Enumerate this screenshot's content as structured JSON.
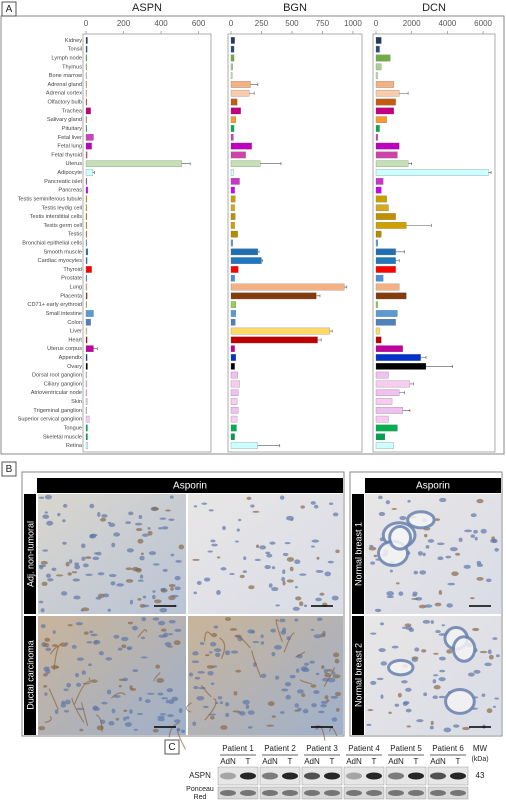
{
  "panel_labels": [
    "A",
    "B",
    "C"
  ],
  "chart_data": [
    {
      "type": "hbar",
      "title": "ASPN",
      "categories": [
        "Kidney",
        "Tonsil",
        "Lymph node",
        "Thymus",
        "Bone marrow",
        "Adrenal gland",
        "Adrenal cortex",
        "Olfactory bulb",
        "Trachea",
        "Salivary gland",
        "Pituitary",
        "Fetal liver",
        "Fetal lung",
        "Fetal thyroid",
        "Uterus",
        "Adipocyte",
        "Pancreatic islet",
        "Pancreas",
        "Testis seminiferous tubule",
        "Testis leydig cell",
        "Testis interstitial cells",
        "Testis germ cell",
        "Testis",
        "Bronchial epithelial cells",
        "Smooth muscle",
        "Cardiac myocytes",
        "Thyroid",
        "Prostate",
        "Lung",
        "Placenta",
        "CD71+ early erythroid",
        "Small intestine",
        "Colon",
        "Liver",
        "Heart",
        "Uterus corpus",
        "Appendix",
        "Ovary",
        "Dorsal root ganglion",
        "Ciliary ganglion",
        "Atrioventricular node",
        "Skin",
        "Trigeminal ganglion",
        "Superior cervical ganglion",
        "Tongue",
        "Skeletal muscle",
        "Retina"
      ],
      "colors": [
        "#203864",
        "#2e4a7a",
        "#70ad47",
        "#a9d18e",
        "#c5e0b4",
        "#f4b183",
        "#f8cbad",
        "#c55a11",
        "#c00080",
        "#ff9933",
        "#00b050",
        "#d040c0",
        "#c000c0",
        "#cc44aa",
        "#c5e0b4",
        "#ccffff",
        "#cc33cc",
        "#cc00ff",
        "#c8a000",
        "#d4aa20",
        "#c09000",
        "#d0a000",
        "#b88a00",
        "#5b9bd5",
        "#1f6fb5",
        "#1f77c0",
        "#ff0000",
        "#4a90d9",
        "#f4b183",
        "#843c0c",
        "#92d050",
        "#5b9bd5",
        "#4f81bd",
        "#ffd966",
        "#c00000",
        "#c000a0",
        "#0033cc",
        "#000000",
        "#f0c0f0",
        "#f8cbf0",
        "#f0c0f0",
        "#f8cbf0",
        "#f0c0f0",
        "#f8cbf0",
        "#00b050",
        "#00a050",
        "#ccffff"
      ],
      "values": [
        8,
        6,
        5,
        4,
        3,
        4,
        3,
        5,
        25,
        4,
        4,
        40,
        30,
        6,
        510,
        35,
        5,
        10,
        5,
        5,
        5,
        5,
        5,
        4,
        10,
        6,
        30,
        5,
        5,
        6,
        4,
        40,
        25,
        5,
        6,
        40,
        6,
        8,
        4,
        5,
        5,
        6,
        4,
        18,
        8,
        8,
        10
      ],
      "errors": [
        0,
        0,
        0,
        0,
        0,
        0,
        0,
        0,
        0,
        0,
        0,
        0,
        0,
        0,
        45,
        10,
        0,
        0,
        0,
        0,
        0,
        0,
        0,
        0,
        0,
        0,
        0,
        0,
        0,
        0,
        0,
        0,
        0,
        0,
        0,
        20,
        0,
        0,
        0,
        0,
        0,
        0,
        0,
        0,
        0,
        0,
        0
      ],
      "xlim": [
        0,
        650
      ],
      "xticks": [
        0,
        200,
        400,
        600
      ]
    },
    {
      "type": "hbar",
      "title": "BGN",
      "values": [
        30,
        25,
        25,
        15,
        10,
        160,
        150,
        50,
        80,
        40,
        25,
        20,
        170,
        120,
        240,
        20,
        70,
        30,
        35,
        30,
        35,
        30,
        55,
        15,
        220,
        250,
        60,
        30,
        930,
        700,
        40,
        40,
        35,
        810,
        710,
        30,
        40,
        30,
        55,
        70,
        60,
        50,
        60,
        50,
        45,
        30,
        220
      ],
      "errors": [
        0,
        0,
        0,
        0,
        0,
        60,
        40,
        0,
        0,
        0,
        0,
        0,
        0,
        0,
        170,
        0,
        0,
        0,
        0,
        0,
        0,
        0,
        0,
        0,
        10,
        10,
        0,
        0,
        20,
        30,
        0,
        0,
        0,
        20,
        30,
        0,
        0,
        0,
        0,
        0,
        0,
        0,
        0,
        0,
        0,
        0,
        180
      ],
      "xlim": [
        0,
        1050
      ],
      "xticks": [
        0,
        250,
        500,
        750,
        1000
      ]
    },
    {
      "type": "hbar",
      "title": "DCN",
      "values": [
        300,
        200,
        800,
        300,
        100,
        1000,
        1300,
        1100,
        1000,
        600,
        200,
        100,
        1300,
        1200,
        1800,
        6300,
        400,
        300,
        600,
        700,
        1100,
        1700,
        300,
        100,
        1100,
        1100,
        1100,
        400,
        1300,
        1700,
        100,
        1200,
        1100,
        200,
        300,
        1500,
        2500,
        2800,
        700,
        1900,
        1300,
        900,
        1500,
        700,
        1200,
        500,
        1000
      ],
      "errors": [
        0,
        0,
        0,
        0,
        0,
        0,
        500,
        0,
        0,
        0,
        0,
        0,
        0,
        0,
        200,
        150,
        0,
        0,
        0,
        0,
        0,
        1400,
        0,
        0,
        500,
        200,
        0,
        0,
        0,
        0,
        0,
        0,
        0,
        0,
        0,
        0,
        300,
        1500,
        0,
        200,
        300,
        0,
        400,
        0,
        0,
        0,
        0
      ],
      "xlim": [
        0,
        6500
      ],
      "xticks": [
        0,
        2000,
        4000,
        6000
      ]
    }
  ],
  "histology": {
    "left_header": "Asporin",
    "right_header": "Asporin",
    "left_rows": [
      "Adj. non-tumoral",
      "Ductal carcinoma"
    ],
    "right_rows": [
      "Normal breast 1",
      "Normal breast 2"
    ]
  },
  "blot": {
    "patients": [
      "Patient 1",
      "Patient 2",
      "Patient 3",
      "Patient 4",
      "Patient 5",
      "Patient 6"
    ],
    "lanes": [
      "AdN",
      "T"
    ],
    "rows": [
      "ASPN",
      "Ponceau",
      "Red"
    ],
    "mw_header": [
      "MW",
      "(kDa)"
    ],
    "mw": "43"
  }
}
